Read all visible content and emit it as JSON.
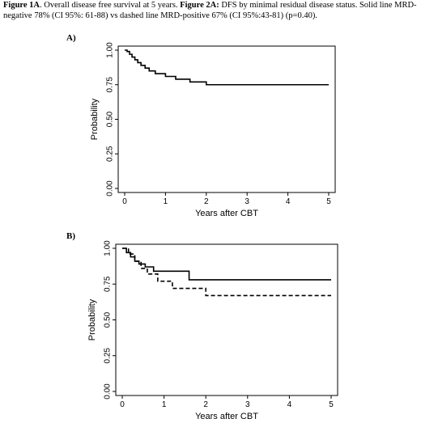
{
  "caption": {
    "fig1_label": "Figure 1A",
    "fig1_text": ". Overall disease free survival at 5 years. ",
    "fig2_label": "Figure 2A:",
    "fig2_text": " DFS by minimal residual disease status. Solid line MRD-negative 78% (CI 95%: 61-88) vs dashed line MRD-positive 67% (CI 95%:43-81) (p=0.40)."
  },
  "chart_data": [
    {
      "panel_label": "A)",
      "type": "line",
      "step": true,
      "xlabel": "Years after CBT",
      "ylabel": "Probability",
      "xlim": [
        0,
        5
      ],
      "ylim": [
        0,
        1
      ],
      "xticks": [
        "0",
        "1",
        "2",
        "3",
        "4",
        "5"
      ],
      "yticks": [
        "0.00",
        "0.25",
        "0.50",
        "0.75",
        "1.00"
      ],
      "series": [
        {
          "style": "solid",
          "x": [
            0,
            0.06,
            0.12,
            0.18,
            0.25,
            0.32,
            0.4,
            0.5,
            0.6,
            0.75,
            1.0,
            1.25,
            1.6,
            2.0,
            5.0
          ],
          "y": [
            1.0,
            0.99,
            0.97,
            0.95,
            0.93,
            0.91,
            0.89,
            0.87,
            0.85,
            0.83,
            0.81,
            0.79,
            0.77,
            0.75,
            0.75
          ]
        }
      ]
    },
    {
      "panel_label": "B)",
      "type": "line",
      "step": true,
      "xlabel": "Years after CBT",
      "ylabel": "Probability",
      "xlim": [
        0,
        5
      ],
      "ylim": [
        0,
        1
      ],
      "xticks": [
        "0",
        "1",
        "2",
        "3",
        "4",
        "5"
      ],
      "yticks": [
        "0.00",
        "0.25",
        "0.50",
        "0.75",
        "1.00"
      ],
      "series": [
        {
          "style": "solid",
          "x": [
            0,
            0.1,
            0.2,
            0.3,
            0.4,
            0.55,
            0.75,
            1.6,
            5.0
          ],
          "y": [
            1.0,
            0.97,
            0.94,
            0.91,
            0.89,
            0.87,
            0.84,
            0.78,
            0.78
          ]
        },
        {
          "style": "dashed",
          "x": [
            0,
            0.15,
            0.3,
            0.45,
            0.6,
            0.85,
            1.2,
            2.0,
            5.0
          ],
          "y": [
            1.0,
            0.96,
            0.91,
            0.86,
            0.82,
            0.77,
            0.72,
            0.67,
            0.67
          ]
        }
      ]
    }
  ]
}
